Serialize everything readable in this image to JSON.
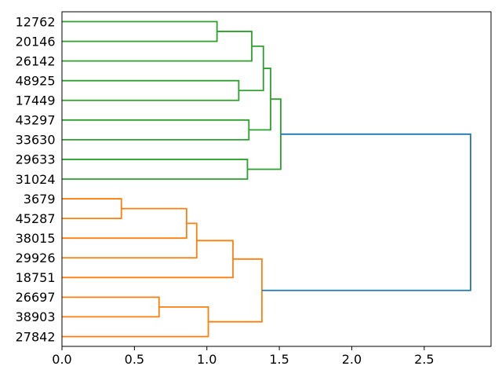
{
  "figure": {
    "title": "",
    "background": "#ffffff"
  },
  "chart_data": {
    "type": "dendrogram",
    "orientation": "right-root",
    "title": "",
    "xlabel": "",
    "ylabel": "",
    "grid": false,
    "legend": null,
    "xlim": [
      0,
      2.961
    ],
    "xticks": [
      0.0,
      0.5,
      1.0,
      1.5,
      2.0,
      2.5
    ],
    "leaves": [
      "12762",
      "20146",
      "26142",
      "48925",
      "17449",
      "43297",
      "33630",
      "29633",
      "31024",
      "3679",
      "45287",
      "38015",
      "29926",
      "18751",
      "26697",
      "38903",
      "27842"
    ],
    "links": [
      {
        "id": "G1",
        "a": "12762",
        "b": "20146",
        "distance": 1.07,
        "color": "green"
      },
      {
        "id": "G2",
        "a": "G1",
        "b": "26142",
        "distance": 1.31,
        "color": "green"
      },
      {
        "id": "G3",
        "a": "48925",
        "b": "17449",
        "distance": 1.22,
        "color": "green"
      },
      {
        "id": "G4",
        "a": "G2",
        "b": "G3",
        "distance": 1.39,
        "color": "green"
      },
      {
        "id": "G5",
        "a": "43297",
        "b": "33630",
        "distance": 1.29,
        "color": "green"
      },
      {
        "id": "G6",
        "a": "G4",
        "b": "G5",
        "distance": 1.44,
        "color": "green"
      },
      {
        "id": "G7",
        "a": "29633",
        "b": "31024",
        "distance": 1.28,
        "color": "green"
      },
      {
        "id": "G8",
        "a": "G6",
        "b": "G7",
        "distance": 1.51,
        "color": "green"
      },
      {
        "id": "O1",
        "a": "3679",
        "b": "45287",
        "distance": 0.41,
        "color": "orange"
      },
      {
        "id": "O2",
        "a": "O1",
        "b": "38015",
        "distance": 0.86,
        "color": "orange"
      },
      {
        "id": "O3",
        "a": "O2",
        "b": "29926",
        "distance": 0.93,
        "color": "orange"
      },
      {
        "id": "O4",
        "a": "O3",
        "b": "18751",
        "distance": 1.18,
        "color": "orange"
      },
      {
        "id": "O5",
        "a": "26697",
        "b": "38903",
        "distance": 0.67,
        "color": "orange"
      },
      {
        "id": "O6",
        "a": "O5",
        "b": "27842",
        "distance": 1.01,
        "color": "orange"
      },
      {
        "id": "O7",
        "a": "O4",
        "b": "O6",
        "distance": 1.38,
        "color": "orange"
      },
      {
        "id": "ROOT",
        "a": "G8",
        "b": "O7",
        "distance": 2.82,
        "color": "blue"
      }
    ],
    "colors": {
      "green": "#2ca02c",
      "orange": "#ff7f0e",
      "blue": "#1f77b4",
      "axis": "#000000",
      "text": "#000000"
    }
  }
}
